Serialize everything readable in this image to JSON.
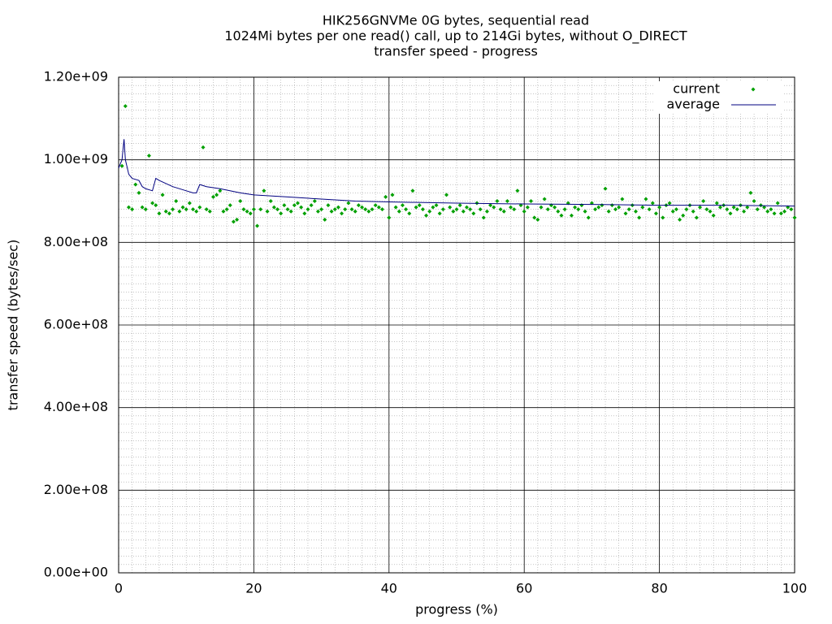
{
  "chart_data": {
    "type": "scatter",
    "title": [
      "HIK256GNVMe 0G bytes, sequential read",
      "1024Mi bytes per one read() call, up to 214Gi bytes, without O_DIRECT",
      "transfer speed - progress"
    ],
    "x_label": "progress (%)",
    "y_label": "transfer speed (bytes/sec)",
    "xlim": [
      0,
      100
    ],
    "xticks": [
      0,
      20,
      40,
      60,
      80,
      100
    ],
    "ylim": [
      0,
      1200000000.0
    ],
    "yticks": [
      {
        "value": 0,
        "label": "0.00e+00"
      },
      {
        "value": 200000000.0,
        "label": "2.00e+08"
      },
      {
        "value": 400000000.0,
        "label": "4.00e+08"
      },
      {
        "value": 600000000.0,
        "label": "6.00e+08"
      },
      {
        "value": 800000000.0,
        "label": "8.00e+08"
      },
      {
        "value": 1000000000.0,
        "label": "1.00e+09"
      },
      {
        "value": 1200000000.0,
        "label": "1.20e+09"
      }
    ],
    "grid": true,
    "legend": "top-right",
    "series": [
      {
        "name": "current",
        "type": "scatter",
        "color": "#00a000",
        "x": [
          0.5,
          1,
          1.5,
          2,
          2.5,
          3,
          3.5,
          4,
          4.5,
          5,
          5.5,
          6,
          6.5,
          7,
          7.5,
          8,
          8.5,
          9,
          9.5,
          10,
          10.5,
          11,
          11.5,
          12,
          12.5,
          13,
          13.5,
          14,
          14.5,
          15,
          15.5,
          16,
          16.5,
          17,
          17.5,
          18,
          18.5,
          19,
          19.5,
          20,
          20.5,
          21,
          21.5,
          22,
          22.5,
          23,
          23.5,
          24,
          24.5,
          25,
          25.5,
          26,
          26.5,
          27,
          27.5,
          28,
          28.5,
          29,
          29.5,
          30,
          30.5,
          31,
          31.5,
          32,
          32.5,
          33,
          33.5,
          34,
          34.5,
          35,
          35.5,
          36,
          36.5,
          37,
          37.5,
          38,
          38.5,
          39,
          39.5,
          40,
          40.5,
          41,
          41.5,
          42,
          42.5,
          43,
          43.5,
          44,
          44.5,
          45,
          45.5,
          46,
          46.5,
          47,
          47.5,
          48,
          48.5,
          49,
          49.5,
          50,
          50.5,
          51,
          51.5,
          52,
          52.5,
          53,
          53.5,
          54,
          54.5,
          55,
          55.5,
          56,
          56.5,
          57,
          57.5,
          58,
          58.5,
          59,
          59.5,
          60,
          60.5,
          61,
          61.5,
          62,
          62.5,
          63,
          63.5,
          64,
          64.5,
          65,
          65.5,
          66,
          66.5,
          67,
          67.5,
          68,
          68.5,
          69,
          69.5,
          70,
          70.5,
          71,
          71.5,
          72,
          72.5,
          73,
          73.5,
          74,
          74.5,
          75,
          75.5,
          76,
          76.5,
          77,
          77.5,
          78,
          78.5,
          79,
          79.5,
          80,
          80.5,
          81,
          81.5,
          82,
          82.5,
          83,
          83.5,
          84,
          84.5,
          85,
          85.5,
          86,
          86.5,
          87,
          87.5,
          88,
          88.5,
          89,
          89.5,
          90,
          90.5,
          91,
          91.5,
          92,
          92.5,
          93,
          93.5,
          94,
          94.5,
          95,
          95.5,
          96,
          96.5,
          97,
          97.5,
          98,
          98.5,
          99,
          99.5,
          100
        ],
        "values": [
          985000000.0,
          1130000000.0,
          885000000.0,
          880000000.0,
          940000000.0,
          920000000.0,
          885000000.0,
          880000000.0,
          1010000000.0,
          895000000.0,
          890000000.0,
          870000000.0,
          915000000.0,
          875000000.0,
          870000000.0,
          880000000.0,
          900000000.0,
          875000000.0,
          885000000.0,
          880000000.0,
          895000000.0,
          880000000.0,
          875000000.0,
          885000000.0,
          1030000000.0,
          880000000.0,
          875000000.0,
          910000000.0,
          915000000.0,
          925000000.0,
          875000000.0,
          880000000.0,
          890000000.0,
          850000000.0,
          855000000.0,
          900000000.0,
          880000000.0,
          875000000.0,
          870000000.0,
          880000000.0,
          840000000.0,
          880000000.0,
          925000000.0,
          875000000.0,
          900000000.0,
          885000000.0,
          880000000.0,
          870000000.0,
          890000000.0,
          880000000.0,
          875000000.0,
          890000000.0,
          895000000.0,
          885000000.0,
          870000000.0,
          880000000.0,
          890000000.0,
          900000000.0,
          875000000.0,
          880000000.0,
          855000000.0,
          890000000.0,
          875000000.0,
          880000000.0,
          885000000.0,
          870000000.0,
          880000000.0,
          895000000.0,
          880000000.0,
          875000000.0,
          890000000.0,
          885000000.0,
          880000000.0,
          875000000.0,
          880000000.0,
          890000000.0,
          885000000.0,
          880000000.0,
          910000000.0,
          860000000.0,
          915000000.0,
          885000000.0,
          875000000.0,
          890000000.0,
          880000000.0,
          870000000.0,
          925000000.0,
          885000000.0,
          890000000.0,
          880000000.0,
          865000000.0,
          875000000.0,
          885000000.0,
          890000000.0,
          870000000.0,
          880000000.0,
          915000000.0,
          885000000.0,
          875000000.0,
          880000000.0,
          890000000.0,
          875000000.0,
          885000000.0,
          880000000.0,
          870000000.0,
          895000000.0,
          880000000.0,
          860000000.0,
          875000000.0,
          890000000.0,
          885000000.0,
          900000000.0,
          880000000.0,
          875000000.0,
          900000000.0,
          885000000.0,
          880000000.0,
          925000000.0,
          890000000.0,
          875000000.0,
          885000000.0,
          900000000.0,
          860000000.0,
          855000000.0,
          885000000.0,
          905000000.0,
          880000000.0,
          890000000.0,
          885000000.0,
          875000000.0,
          865000000.0,
          880000000.0,
          895000000.0,
          865000000.0,
          885000000.0,
          880000000.0,
          890000000.0,
          875000000.0,
          860000000.0,
          895000000.0,
          880000000.0,
          885000000.0,
          890000000.0,
          930000000.0,
          875000000.0,
          890000000.0,
          880000000.0,
          885000000.0,
          905000000.0,
          870000000.0,
          880000000.0,
          890000000.0,
          875000000.0,
          860000000.0,
          885000000.0,
          905000000.0,
          880000000.0,
          895000000.0,
          870000000.0,
          885000000.0,
          860000000.0,
          890000000.0,
          895000000.0,
          875000000.0,
          880000000.0,
          855000000.0,
          865000000.0,
          880000000.0,
          890000000.0,
          875000000.0,
          860000000.0,
          885000000.0,
          900000000.0,
          880000000.0,
          875000000.0,
          865000000.0,
          895000000.0,
          885000000.0,
          890000000.0,
          880000000.0,
          870000000.0,
          885000000.0,
          880000000.0,
          890000000.0,
          875000000.0,
          885000000.0,
          920000000.0,
          900000000.0,
          880000000.0,
          890000000.0,
          885000000.0,
          875000000.0,
          880000000.0,
          870000000.0,
          895000000.0,
          870000000.0,
          875000000.0,
          885000000.0,
          880000000.0,
          860000000.0
        ]
      },
      {
        "name": "average",
        "type": "line",
        "color": "#000080",
        "x": [
          0,
          0.5,
          0.8,
          1,
          1.5,
          2,
          3,
          3.5,
          4,
          5,
          5.5,
          6,
          8,
          10,
          11,
          11.5,
          12,
          13,
          15,
          18,
          20,
          25,
          30,
          35,
          40,
          50,
          60,
          70,
          80,
          90,
          100
        ],
        "values": [
          980000000.0,
          1000000000.0,
          1050000000.0,
          1000000000.0,
          965000000.0,
          955000000.0,
          950000000.0,
          935000000.0,
          930000000.0,
          925000000.0,
          955000000.0,
          950000000.0,
          935000000.0,
          925000000.0,
          920000000.0,
          920000000.0,
          940000000.0,
          935000000.0,
          930000000.0,
          920000000.0,
          915000000.0,
          910000000.0,
          905000000.0,
          900000000.0,
          898000000.0,
          895000000.0,
          893000000.0,
          892000000.0,
          890000000.0,
          890000000.0,
          888000000.0
        ]
      }
    ]
  }
}
